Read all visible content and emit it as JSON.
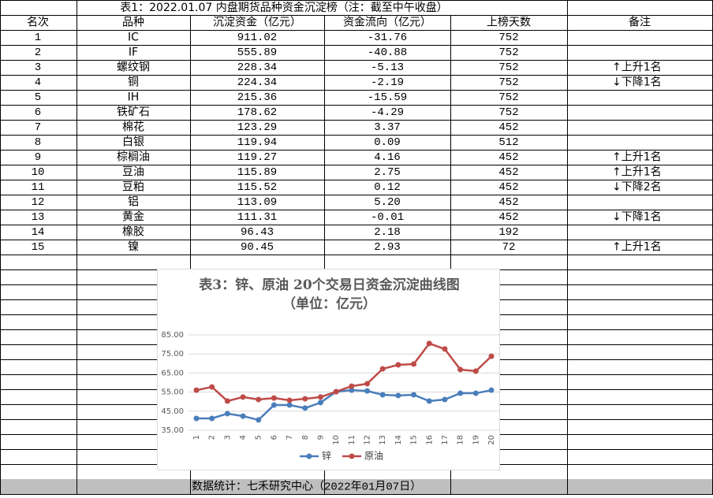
{
  "table": {
    "title": "表1：2022.01.07 内盘期货品种资金沉淀榜（注：截至中午收盘）",
    "header": [
      "名次",
      "品种",
      "沉淀资金（亿元）",
      "资金流向（亿元）",
      "上榜天数",
      "备注"
    ],
    "rows": [
      [
        "1",
        "IC",
        "911.02",
        "-31.76",
        "752",
        ""
      ],
      [
        "2",
        "IF",
        "555.89",
        "-40.88",
        "752",
        ""
      ],
      [
        "3",
        "螺纹钢",
        "228.34",
        "-5.13",
        "752",
        "↑上升1名"
      ],
      [
        "4",
        "铜",
        "224.34",
        "-2.19",
        "752",
        "↓下降1名"
      ],
      [
        "5",
        "IH",
        "215.36",
        "-15.59",
        "752",
        ""
      ],
      [
        "6",
        "铁矿石",
        "178.62",
        "-4.29",
        "752",
        ""
      ],
      [
        "7",
        "棉花",
        "123.29",
        "3.37",
        "452",
        ""
      ],
      [
        "8",
        "白银",
        "119.94",
        "0.09",
        "512",
        ""
      ],
      [
        "9",
        "棕榈油",
        "119.27",
        "4.16",
        "452",
        "↑上升1名"
      ],
      [
        "10",
        "豆油",
        "115.89",
        "2.75",
        "452",
        "↑上升1名"
      ],
      [
        "11",
        "豆粕",
        "115.52",
        "0.12",
        "452",
        "↓下降2名"
      ],
      [
        "12",
        "铝",
        "113.09",
        "5.20",
        "452",
        ""
      ],
      [
        "13",
        "黄金",
        "111.31",
        "-0.01",
        "452",
        "↓下降1名"
      ],
      [
        "14",
        "橡胶",
        "96.43",
        "2.18",
        "192",
        ""
      ],
      [
        "15",
        "镍",
        "90.45",
        "2.93",
        "72",
        "↑上升1名"
      ]
    ],
    "footer": "数据统计：七禾研究中心（2022年01月07日）"
  },
  "chart_data": {
    "type": "line",
    "title": "表3：锌、原油 20个交易日资金沉淀曲线图（单位：亿元）",
    "categories": [
      "1",
      "2",
      "3",
      "4",
      "5",
      "6",
      "7",
      "8",
      "9",
      "10",
      "11",
      "12",
      "13",
      "14",
      "15",
      "16",
      "17",
      "18",
      "19",
      "20"
    ],
    "series": [
      {
        "name": "锌",
        "color": "#4a7ebb",
        "values": [
          41.2,
          41.2,
          43.7,
          42.4,
          40.4,
          48.2,
          48.2,
          46.6,
          49.5,
          55.2,
          56.0,
          55.6,
          53.6,
          53.2,
          53.6,
          50.3,
          51.1,
          54.4,
          54.4,
          56.0
        ]
      },
      {
        "name": "原油",
        "color": "#be4b48",
        "values": [
          56.0,
          57.7,
          50.3,
          52.4,
          51.1,
          51.9,
          50.7,
          51.5,
          52.4,
          55.2,
          58.1,
          59.4,
          67.2,
          69.3,
          69.7,
          80.5,
          77.6,
          66.8,
          66.0,
          73.8
        ]
      }
    ],
    "ylim": [
      35,
      85
    ],
    "yticks": [
      {
        "value": 35,
        "label": "35.00"
      },
      {
        "value": 45,
        "label": "45.00"
      },
      {
        "value": 55,
        "label": "55.00"
      },
      {
        "value": 65,
        "label": "65.00"
      },
      {
        "value": 75,
        "label": "75.00"
      },
      {
        "value": 85,
        "label": "85.00"
      }
    ],
    "grid": true,
    "legend": "bottom"
  }
}
